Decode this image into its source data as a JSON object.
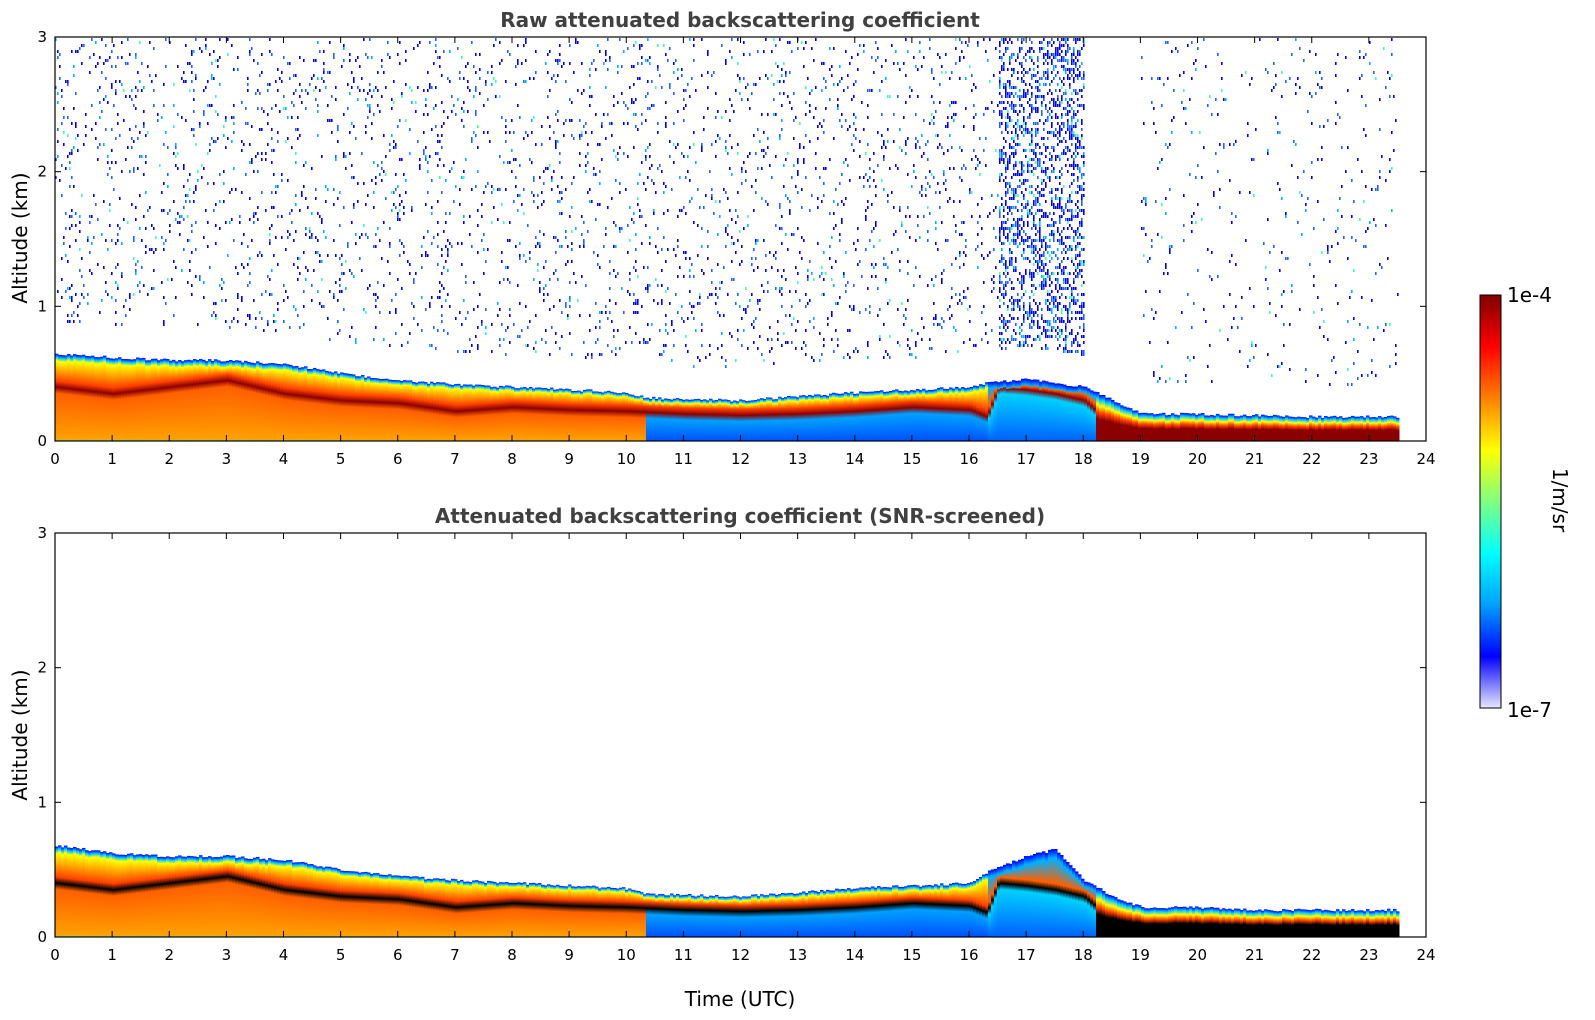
{
  "chart_data": [
    {
      "type": "heatmap",
      "title": "Raw attenuated backscattering coefficient",
      "xlabel": "",
      "ylabel": "Altitude (km)",
      "xlim": [
        0,
        24
      ],
      "ylim": [
        0,
        3
      ],
      "x_ticks": [
        "0",
        "1",
        "2",
        "3",
        "4",
        "5",
        "6",
        "7",
        "8",
        "9",
        "10",
        "11",
        "12",
        "13",
        "14",
        "15",
        "16",
        "17",
        "18",
        "19",
        "20",
        "21",
        "22",
        "23",
        "24"
      ],
      "y_ticks": [
        "0",
        "1",
        "2",
        "3"
      ],
      "data_end_hour": 23.5,
      "noise_above_layer": true,
      "layer_top_km": [
        [
          0,
          0.65
        ],
        [
          1,
          0.62
        ],
        [
          2,
          0.6
        ],
        [
          3,
          0.6
        ],
        [
          4,
          0.57
        ],
        [
          5,
          0.5
        ],
        [
          6,
          0.45
        ],
        [
          7,
          0.42
        ],
        [
          8,
          0.4
        ],
        [
          9,
          0.38
        ],
        [
          10,
          0.36
        ],
        [
          10.3,
          0.32
        ],
        [
          12,
          0.3
        ],
        [
          13,
          0.33
        ],
        [
          14,
          0.36
        ],
        [
          15,
          0.38
        ],
        [
          16,
          0.4
        ],
        [
          16.3,
          0.43
        ],
        [
          17,
          0.46
        ],
        [
          18,
          0.4
        ],
        [
          18.5,
          0.3
        ],
        [
          19,
          0.2
        ],
        [
          20,
          0.2
        ],
        [
          21,
          0.19
        ],
        [
          22,
          0.18
        ],
        [
          23.5,
          0.18
        ]
      ],
      "max_layer_km": [
        [
          0,
          0.4
        ],
        [
          1,
          0.35
        ],
        [
          2,
          0.4
        ],
        [
          3,
          0.45
        ],
        [
          4,
          0.35
        ],
        [
          5,
          0.3
        ],
        [
          6,
          0.28
        ],
        [
          7,
          0.22
        ],
        [
          8,
          0.25
        ],
        [
          9,
          0.23
        ],
        [
          10,
          0.22
        ],
        [
          11,
          0.2
        ],
        [
          12,
          0.19
        ],
        [
          13,
          0.2
        ],
        [
          14,
          0.22
        ],
        [
          15,
          0.25
        ],
        [
          16,
          0.23
        ],
        [
          16.3,
          0.18
        ],
        [
          16.5,
          0.4
        ],
        [
          17,
          0.38
        ],
        [
          17.5,
          0.35
        ],
        [
          18,
          0.3
        ],
        [
          18.5,
          0.12
        ],
        [
          19,
          0.07
        ],
        [
          20,
          0.07
        ],
        [
          22,
          0.07
        ],
        [
          23.5,
          0.07
        ]
      ]
    },
    {
      "type": "heatmap",
      "title": "Attenuated backscattering coefficient (SNR-screened)",
      "xlabel": "Time (UTC)",
      "ylabel": "Altitude (km)",
      "xlim": [
        0,
        24
      ],
      "ylim": [
        0,
        3
      ],
      "x_ticks": [
        "0",
        "1",
        "2",
        "3",
        "4",
        "5",
        "6",
        "7",
        "8",
        "9",
        "10",
        "11",
        "12",
        "13",
        "14",
        "15",
        "16",
        "17",
        "18",
        "19",
        "20",
        "21",
        "22",
        "23",
        "24"
      ],
      "y_ticks": [
        "0",
        "1",
        "2",
        "3"
      ],
      "data_end_hour": 23.5,
      "noise_above_layer": false,
      "layer_top_km": [
        [
          0,
          0.68
        ],
        [
          1,
          0.62
        ],
        [
          2,
          0.6
        ],
        [
          3,
          0.6
        ],
        [
          4,
          0.57
        ],
        [
          5,
          0.5
        ],
        [
          6,
          0.45
        ],
        [
          7,
          0.42
        ],
        [
          8,
          0.4
        ],
        [
          9,
          0.38
        ],
        [
          10,
          0.36
        ],
        [
          10.3,
          0.32
        ],
        [
          12,
          0.3
        ],
        [
          13,
          0.33
        ],
        [
          14,
          0.36
        ],
        [
          15,
          0.38
        ],
        [
          16,
          0.4
        ],
        [
          16.3,
          0.48
        ],
        [
          17,
          0.6
        ],
        [
          17.5,
          0.65
        ],
        [
          18,
          0.42
        ],
        [
          18.5,
          0.3
        ],
        [
          19,
          0.22
        ],
        [
          20,
          0.22
        ],
        [
          21,
          0.2
        ],
        [
          22,
          0.2
        ],
        [
          23.5,
          0.2
        ]
      ],
      "max_layer_km": [
        [
          0,
          0.4
        ],
        [
          1,
          0.35
        ],
        [
          2,
          0.4
        ],
        [
          3,
          0.45
        ],
        [
          4,
          0.35
        ],
        [
          5,
          0.3
        ],
        [
          6,
          0.28
        ],
        [
          7,
          0.22
        ],
        [
          8,
          0.25
        ],
        [
          9,
          0.23
        ],
        [
          10,
          0.22
        ],
        [
          11,
          0.2
        ],
        [
          12,
          0.19
        ],
        [
          13,
          0.2
        ],
        [
          14,
          0.22
        ],
        [
          15,
          0.25
        ],
        [
          16,
          0.23
        ],
        [
          16.3,
          0.18
        ],
        [
          16.5,
          0.4
        ],
        [
          17,
          0.38
        ],
        [
          17.5,
          0.35
        ],
        [
          18,
          0.3
        ],
        [
          18.5,
          0.12
        ],
        [
          19,
          0.07
        ],
        [
          20,
          0.07
        ],
        [
          22,
          0.07
        ],
        [
          23.5,
          0.07
        ]
      ]
    }
  ],
  "colorbar": {
    "label": "1/m/sr",
    "max_label": "1e-4",
    "min_label": "1e-7",
    "colors": [
      "#e6e6ff",
      "#0000ff",
      "#00a0ff",
      "#00ffff",
      "#80ff80",
      "#ffff00",
      "#ff8000",
      "#ff0000",
      "#800000"
    ]
  }
}
